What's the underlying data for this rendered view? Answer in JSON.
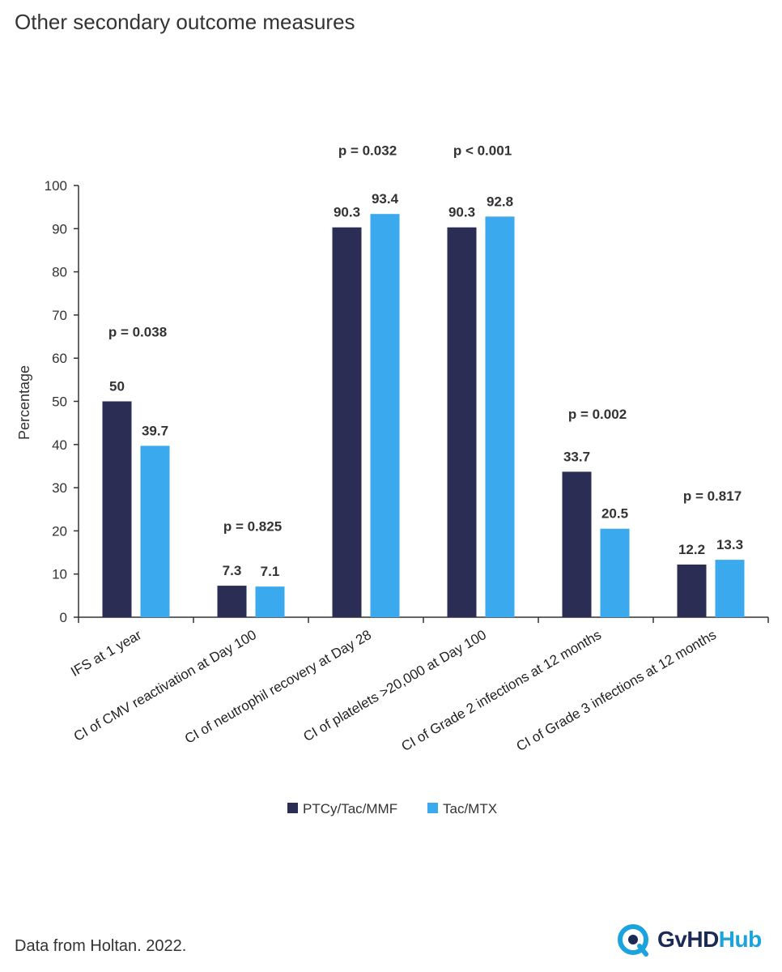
{
  "page": {
    "title": "Other secondary outcome measures",
    "source": "Data from Holtan. 2022.",
    "logo": {
      "text_a": "GvHD",
      "text_b": "Hub",
      "color_a": "#1c2a56",
      "color_b": "#1aa3dc"
    }
  },
  "chart_data": {
    "type": "bar",
    "title": "",
    "xlabel": "",
    "ylabel": "Percentage",
    "ylim": [
      0,
      100
    ],
    "yticks": [
      0,
      10,
      20,
      30,
      40,
      50,
      60,
      70,
      80,
      90,
      100
    ],
    "categories": [
      "IFS at 1 year",
      "CI of CMV reactivation at Day 100",
      "CI of neutrophil recovery at Day 28",
      "CI of platelets >20,000 at Day 100",
      "CI of Grade 2 infections at 12 months",
      "CI of Grade 3 infections at 12 months"
    ],
    "series": [
      {
        "name": "PTCy/Tac/MMF",
        "color": "#2b2d55",
        "values": [
          50,
          7.3,
          90.3,
          90.3,
          33.7,
          12.2
        ],
        "labels": [
          "50",
          "7.3",
          "90.3",
          "90.3",
          "33.7",
          "12.2"
        ]
      },
      {
        "name": "Tac/MTX",
        "color": "#3aa9ee",
        "values": [
          39.7,
          7.1,
          93.4,
          92.8,
          20.5,
          13.3
        ],
        "labels": [
          "39.7",
          "7.1",
          "93.4",
          "92.8",
          "20.5",
          "13.3"
        ]
      }
    ],
    "annotations": [
      {
        "category": 0,
        "text": "p = 0.038",
        "y": 65
      },
      {
        "category": 1,
        "text": "p = 0.825",
        "y": 20
      },
      {
        "category": 2,
        "text": "p = 0.032",
        "y": 107
      },
      {
        "category": 3,
        "text": "p < 0.001",
        "y": 107
      },
      {
        "category": 4,
        "text": "p = 0.002",
        "y": 46
      },
      {
        "category": 5,
        "text": "p = 0.817",
        "y": 27
      }
    ],
    "legend": "bottom-center",
    "grid": false
  }
}
